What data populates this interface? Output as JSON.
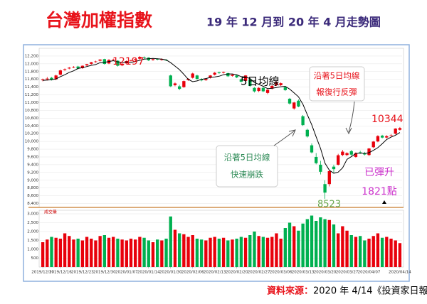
{
  "chart_data": {
    "type": "candlestick",
    "title": "台灣加權指數",
    "subtitle": "19 年 12 月到 20 年 4 月走勢圖",
    "source_label": "資料來源：",
    "source": "2020 年 4/14《投資家日報》",
    "categories": [
      "2019/12/10",
      null,
      null,
      null,
      "2019/12/16",
      null,
      null,
      null,
      null,
      "2019/12/23",
      null,
      null,
      null,
      null,
      "2019/12/30",
      null,
      null,
      null,
      null,
      "2020/01/07",
      null,
      null,
      null,
      null,
      "2020/01/14",
      null,
      null,
      null,
      null,
      "2020/01/30",
      null,
      null,
      null,
      null,
      "2020/02/06",
      null,
      null,
      null,
      null,
      "2020/02/13",
      null,
      null,
      null,
      null,
      "2020/02/20",
      null,
      null,
      null,
      null,
      "2020/02/27",
      null,
      null,
      null,
      null,
      "2020/03/06",
      null,
      null,
      null,
      null,
      "2020/03/13",
      null,
      null,
      null,
      null,
      "2020/03/20",
      null,
      null,
      null,
      null,
      "2020/03/27",
      null,
      null,
      null,
      null,
      "2020/04/07",
      null,
      null,
      null,
      null,
      null,
      null,
      "2020/04/14"
    ],
    "open": [
      11580,
      11600,
      11640,
      11600,
      11720,
      11840,
      11880,
      11910,
      11930,
      11890,
      11960,
      12000,
      12050,
      12080,
      12120,
      12010,
      12100,
      12080,
      11960,
      12010,
      12080,
      12100,
      12130,
      12170,
      12160,
      12100,
      12130,
      12100,
      12100,
      11700,
      11450,
      11420,
      11400,
      11580,
      11640,
      11700,
      11600,
      11580,
      11640,
      11720,
      11780,
      11770,
      11760,
      11690,
      11700,
      11600,
      11560,
      11600,
      11380,
      11300,
      11380,
      11250,
      11360,
      11450,
      11450,
      11400,
      11100,
      10850,
      11050,
      10650,
      10300,
      9900,
      9600,
      9400,
      8900,
      8900,
      9350,
      9400,
      9650,
      9650,
      9750,
      9600,
      9720,
      9700,
      9650,
      9850,
      10000,
      10150,
      10100,
      10150,
      10200,
      10300
    ],
    "high": [
      11620,
      11660,
      11660,
      11720,
      11850,
      11880,
      11920,
      11940,
      11950,
      11960,
      12000,
      12050,
      12080,
      12120,
      12130,
      12120,
      12130,
      12090,
      12020,
      12090,
      12110,
      12140,
      12197,
      12190,
      12170,
      12140,
      12140,
      12140,
      12120,
      11720,
      11520,
      11460,
      11570,
      11630,
      11770,
      11720,
      11630,
      11630,
      11710,
      11790,
      11800,
      11800,
      11770,
      11730,
      11720,
      11620,
      11710,
      11620,
      11400,
      11400,
      11400,
      11350,
      11450,
      11550,
      11520,
      11420,
      11120,
      11020,
      11080,
      10680,
      10330,
      9950,
      9700,
      9500,
      9000,
      9250,
      9400,
      9680,
      9780,
      9720,
      9780,
      9720,
      9760,
      9730,
      9830,
      10010,
      10160,
      10170,
      10160,
      10190,
      10340,
      10370
    ],
    "low": [
      11550,
      11570,
      11570,
      11580,
      11700,
      11820,
      11860,
      11890,
      11860,
      11870,
      11940,
      11980,
      12030,
      12060,
      11980,
      11990,
      12080,
      11930,
      11940,
      11990,
      12060,
      12080,
      12110,
      12120,
      12070,
      12080,
      12090,
      12080,
      12070,
      11400,
      11420,
      11320,
      11380,
      11560,
      11620,
      11590,
      11550,
      11560,
      11620,
      11700,
      11740,
      11750,
      11660,
      11670,
      11630,
      11520,
      11530,
      11410,
      11260,
      11270,
      11270,
      11220,
      11340,
      11430,
      11430,
      11300,
      10950,
      10820,
      10880,
      10400,
      10100,
      9690,
      9410,
      9150,
      8523,
      8840,
      9200,
      9380,
      9620,
      9620,
      9630,
      9580,
      9680,
      9640,
      9620,
      9830,
      9980,
      10080,
      10080,
      10130,
      10180,
      10280
    ],
    "close": [
      11600,
      11620,
      11590,
      11700,
      11830,
      11860,
      11900,
      11920,
      11880,
      11950,
      11990,
      12040,
      12060,
      12110,
      11997,
      12100,
      12110,
      11950,
      12000,
      12070,
      12090,
      12120,
      12180,
      12150,
      12090,
      12120,
      12110,
      12118,
      12090,
      11421,
      11495,
      11354,
      11555,
      11610,
      11750,
      11612,
      11574,
      11610,
      11700,
      11770,
      11760,
      11790,
      11680,
      11720,
      11650,
      11540,
      11700,
      11430,
      11290,
      11380,
      11292,
      11330,
      11430,
      11530,
      11500,
      11322,
      10977,
      11003,
      10900,
      10420,
      10128,
      9717,
      9439,
      9218,
      8681,
      9234,
      9285,
      9644,
      9736,
      9700,
      9660,
      9698,
      9708,
      9663,
      9818,
      9996,
      10138,
      10099,
      10137,
      10157,
      10332,
      10344
    ],
    "ma5": {
      "name": "5日均線",
      "color": "#000000",
      "values": [
        11570,
        11580,
        11590,
        11610,
        11670,
        11720,
        11780,
        11820,
        11880,
        11900,
        11930,
        11960,
        11980,
        12030,
        12040,
        12060,
        12080,
        12050,
        12040,
        12050,
        12040,
        12060,
        12090,
        12120,
        12130,
        12140,
        12130,
        12120,
        12100,
        12030,
        11940,
        11850,
        11730,
        11600,
        11540,
        11560,
        11600,
        11620,
        11650,
        11660,
        11680,
        11720,
        11740,
        11740,
        11720,
        11670,
        11660,
        11620,
        11520,
        11470,
        11420,
        11360,
        11370,
        11390,
        11410,
        11420,
        11350,
        11250,
        11150,
        10960,
        10690,
        10430,
        10120,
        9820,
        9440,
        9260,
        9180,
        9210,
        9320,
        9540,
        9610,
        9690,
        9700,
        9690,
        9710,
        9770,
        9840,
        9940,
        10050,
        10110,
        10160,
        10230
      ]
    },
    "up_color": "#e8000b",
    "down_color": "#00b050",
    "ylim": [
      8300,
      12400
    ],
    "yticks": [
      {
        "value": 8400,
        "label": "8,400"
      },
      {
        "value": 8600,
        "label": "8,600"
      },
      {
        "value": 8800,
        "label": "8,800"
      },
      {
        "value": 9000,
        "label": "9,000"
      },
      {
        "value": 9200,
        "label": "9,200"
      },
      {
        "value": 9400,
        "label": "9,400"
      },
      {
        "value": 9600,
        "label": "9,600"
      },
      {
        "value": 9800,
        "label": "9,800"
      },
      {
        "value": 10000,
        "label": "10,000"
      },
      {
        "value": 10200,
        "label": "10,200"
      },
      {
        "value": 10400,
        "label": "10,400"
      },
      {
        "value": 10600,
        "label": "10,600"
      },
      {
        "value": 10800,
        "label": "10,800"
      },
      {
        "value": 11000,
        "label": "11,000"
      },
      {
        "value": 11200,
        "label": "11,200"
      },
      {
        "value": 11400,
        "label": "11,400"
      },
      {
        "value": 11600,
        "label": "11,600"
      },
      {
        "value": 11800,
        "label": "11,800"
      },
      {
        "value": 12000,
        "label": "12,000"
      },
      {
        "value": 12200,
        "label": "12,200"
      }
    ],
    "grid": true,
    "volume": {
      "name": "成交量",
      "values": [
        1400,
        1550,
        1700,
        1650,
        1600,
        1900,
        1750,
        1550,
        1600,
        1500,
        1700,
        1600,
        1500,
        1750,
        1800,
        1650,
        1700,
        1600,
        1550,
        1500,
        1600,
        1550,
        1700,
        1650,
        1500,
        1400,
        1550,
        1500,
        1600,
        2850,
        2100,
        1900,
        1850,
        1700,
        1800,
        1600,
        1550,
        1500,
        1650,
        1700,
        1600,
        1650,
        1500,
        1550,
        1600,
        1700,
        1650,
        1800,
        2000,
        1750,
        1700,
        1650,
        1700,
        1900,
        1600,
        2200,
        2500,
        2300,
        2050,
        2450,
        2700,
        2900,
        2600,
        2800,
        2700,
        2650,
        2400,
        1900,
        2300,
        2050,
        1800,
        1700,
        1750,
        1500,
        1600,
        1750,
        1900,
        1650,
        1700,
        1600,
        1500,
        1350
      ],
      "ylim": [
        0,
        3200
      ],
      "yticks": [
        500,
        {
          "value": 1000,
          "label": "1,000"
        },
        {
          "value": 1500,
          "label": "1,500"
        },
        {
          "value": 2000,
          "label": "2,000"
        },
        {
          "value": 2500,
          "label": "2,500"
        },
        {
          "value": 3000,
          "label": "3,000"
        }
      ]
    },
    "annotations": {
      "high": "12197",
      "ma_label": "5日均線",
      "rebound_1": "沿著5日均線",
      "rebound_2": "報復行反彈",
      "last": "10344",
      "crash_1": "沿著5日均線",
      "crash_2": "快速崩跌",
      "low": "8523",
      "rise_1": "已彈升",
      "rise_2": "1821點"
    }
  }
}
